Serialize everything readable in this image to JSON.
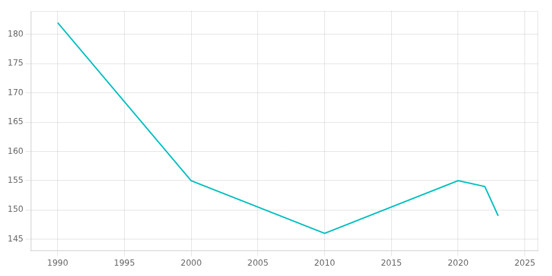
{
  "chart_data": {
    "type": "line",
    "x": [
      1990,
      2000,
      2010,
      2020,
      2022,
      2023
    ],
    "values": [
      182.0,
      155.0,
      146.0,
      155.0,
      154.0,
      149.0
    ],
    "color": "#00BFBF",
    "xlim": [
      1988,
      2026
    ],
    "ylim": [
      143,
      184
    ],
    "xticks": [
      1990,
      1995,
      2000,
      2005,
      2010,
      2015,
      2020,
      2025
    ],
    "yticks": [
      145,
      150,
      155,
      160,
      165,
      170,
      175,
      180
    ],
    "grid": true
  }
}
